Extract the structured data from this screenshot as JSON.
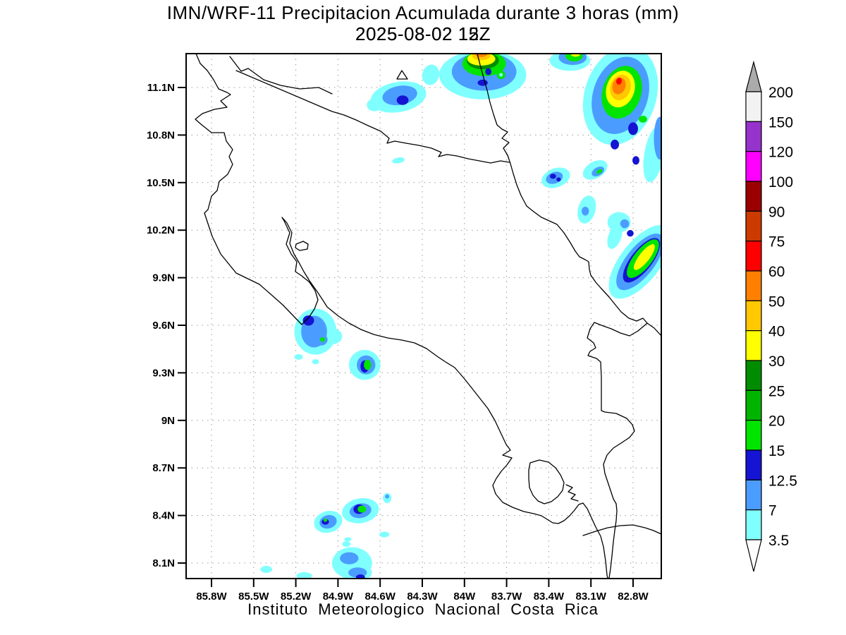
{
  "title": {
    "line1": "IMN/WRF-11 Precipitacion Acumulada durante 3 horas (mm)",
    "subtitle_overlap_a": "2025-08-02 15Z",
    "subtitle_overlap_b": "2025-08-02 12Z"
  },
  "footer": "Instituto Meteorologico Nacional Costa Rica",
  "chart_data": {
    "type": "heatmap",
    "subtype": "filled-contour-precipitation-map",
    "title": "IMN/WRF-11 Precipitacion Acumulada durante 3 horas (mm)",
    "valid_times_overlapped": [
      "2025-08-02 15Z",
      "2025-08-02 12Z"
    ],
    "units": "mm",
    "source": "Instituto Meteorologico Nacional Costa Rica",
    "region": "Costa Rica",
    "grid": {
      "visible": true,
      "style": "dotted",
      "color": "#999999"
    },
    "map_extent": {
      "lon_w_range": [
        85.98,
        82.6
      ],
      "lat_range": [
        8.0,
        11.31
      ]
    },
    "lat_ticks": {
      "values": [
        11.1,
        10.8,
        10.5,
        10.2,
        9.9,
        9.6,
        9.3,
        9.0,
        8.7,
        8.4,
        8.1
      ],
      "labels": [
        "11.1N",
        "10.8N",
        "10.5N",
        "10.2N",
        "9.9N",
        "9.6N",
        "9.3N",
        "9N",
        "8.7N",
        "8.4N",
        "8.1N"
      ]
    },
    "lon_ticks": {
      "values": [
        85.8,
        85.5,
        85.2,
        84.9,
        84.6,
        84.3,
        84.0,
        83.7,
        83.4,
        83.1,
        82.8
      ],
      "labels": [
        "85.8W",
        "85.5W",
        "85.2W",
        "84.9W",
        "84.6W",
        "84.3W",
        "84W",
        "83.7W",
        "83.4W",
        "83.1W",
        "82.8W"
      ]
    },
    "colorbar": {
      "position": "right",
      "levels_top_to_bottom": [
        "200",
        "150",
        "120",
        "100",
        "90",
        "75",
        "60",
        "50",
        "40",
        "30",
        "25",
        "20",
        "15",
        "12.5",
        "7",
        "3.5"
      ],
      "segment_colors_top_to_bottom": [
        "#f2f2f2",
        "#9633cc",
        "#ff00ff",
        "#9b0000",
        "#cc3a00",
        "#fe0000",
        "#ff8000",
        "#ffc800",
        "#ffff00",
        "#008c00",
        "#00b400",
        "#00e400",
        "#1414d2",
        "#4b9cff",
        "#80ffff"
      ],
      "over_arrow_color": "#ababab",
      "under_arrow_color": "#ffffff"
    },
    "level_colors": {
      "cyan": {
        "range_mm": "3.5-7",
        "hex": "#80ffff"
      },
      "blue": {
        "range_mm": "7-12.5",
        "hex": "#4b9cff"
      },
      "navy": {
        "range_mm": "12.5-15",
        "hex": "#1414d2"
      },
      "green": {
        "range_mm": "15-20",
        "hex": "#00e400"
      },
      "mgreen": {
        "range_mm": "20-25",
        "hex": "#00b400"
      },
      "dgreen": {
        "range_mm": "25-30",
        "hex": "#008c00"
      },
      "yellow": {
        "range_mm": "30-40",
        "hex": "#ffff00"
      },
      "gold": {
        "range_mm": "40-50",
        "hex": "#ffc800"
      },
      "orange": {
        "range_mm": "50-60",
        "hex": "#ff8000"
      },
      "red": {
        "range_mm": "60-75",
        "hex": "#fe0000"
      }
    },
    "precip_cells_note": "each shape: [level, lon_deg_west, lat_deg_north, rx_deg, ry_deg, rotation_deg]; painted in order",
    "precip_shapes": [
      [
        "cyan",
        84.47,
        11.04,
        0.2,
        0.095,
        -10
      ],
      [
        "cyan",
        84.64,
        10.99,
        0.055,
        0.04,
        0
      ],
      [
        "cyan",
        84.24,
        11.18,
        0.06,
        0.065,
        15
      ],
      [
        "blue",
        84.46,
        11.05,
        0.125,
        0.06,
        -10
      ],
      [
        "navy",
        84.44,
        11.02,
        0.042,
        0.03,
        0
      ],
      [
        "cyan",
        84.47,
        10.64,
        0.045,
        0.018,
        -10
      ],
      [
        "cyan",
        83.87,
        11.18,
        0.31,
        0.155,
        0
      ],
      [
        "blue",
        83.86,
        11.2,
        0.23,
        0.12,
        0
      ],
      [
        "green",
        83.86,
        11.25,
        0.155,
        0.078,
        0
      ],
      [
        "dgreen",
        83.87,
        11.27,
        0.115,
        0.055,
        0
      ],
      [
        "yellow",
        83.88,
        11.28,
        0.1,
        0.042,
        0
      ],
      [
        "gold",
        83.88,
        11.3,
        0.065,
        0.028,
        0
      ],
      [
        "orange",
        83.88,
        11.31,
        0.042,
        0.018,
        0
      ],
      [
        "red",
        83.88,
        11.32,
        0.024,
        0.01,
        0
      ],
      [
        "navy",
        83.87,
        11.13,
        0.036,
        0.02,
        0
      ],
      [
        "navy",
        83.83,
        11.2,
        0.022,
        0.022,
        0
      ],
      [
        "green",
        83.74,
        11.18,
        0.03,
        0.027,
        0
      ],
      [
        "cyan",
        83.74,
        11.18,
        0.013,
        0.012,
        0
      ],
      [
        "cyan",
        82.89,
        11.05,
        0.255,
        0.32,
        18
      ],
      [
        "cyan",
        82.65,
        10.68,
        0.07,
        0.18,
        10
      ],
      [
        "blue",
        82.89,
        11.05,
        0.195,
        0.25,
        18
      ],
      [
        "blue",
        82.61,
        10.78,
        0.042,
        0.135,
        0
      ],
      [
        "green",
        82.88,
        11.07,
        0.138,
        0.17,
        18
      ],
      [
        "yellow",
        82.89,
        11.09,
        0.1,
        0.118,
        18
      ],
      [
        "gold",
        82.89,
        11.1,
        0.072,
        0.082,
        18
      ],
      [
        "orange",
        82.9,
        11.11,
        0.046,
        0.054,
        18
      ],
      [
        "red",
        82.9,
        11.14,
        0.02,
        0.022,
        10
      ],
      [
        "green",
        82.73,
        10.9,
        0.03,
        0.022,
        0
      ],
      [
        "navy",
        82.8,
        10.84,
        0.035,
        0.04,
        0
      ],
      [
        "navy",
        82.93,
        10.74,
        0.03,
        0.031,
        0
      ],
      [
        "navy",
        82.78,
        10.64,
        0.025,
        0.027,
        0
      ],
      [
        "cyan",
        83.25,
        11.27,
        0.145,
        0.065,
        0
      ],
      [
        "blue",
        83.23,
        11.29,
        0.1,
        0.048,
        0
      ],
      [
        "green",
        83.22,
        11.3,
        0.062,
        0.036,
        0
      ],
      [
        "yellow",
        83.21,
        11.31,
        0.032,
        0.016,
        0
      ],
      [
        "cyan",
        83.07,
        10.58,
        0.095,
        0.052,
        -30
      ],
      [
        "blue",
        83.05,
        10.57,
        0.048,
        0.026,
        -30
      ],
      [
        "green",
        83.04,
        10.57,
        0.022,
        0.012,
        -30
      ],
      [
        "cyan",
        83.35,
        10.53,
        0.105,
        0.06,
        -20
      ],
      [
        "blue",
        83.36,
        10.53,
        0.062,
        0.036,
        -20
      ],
      [
        "navy",
        83.37,
        10.54,
        0.022,
        0.016,
        0
      ],
      [
        "navy",
        83.33,
        10.52,
        0.016,
        0.013,
        0
      ],
      [
        "cyan",
        83.13,
        10.33,
        0.062,
        0.09,
        15
      ],
      [
        "blue",
        83.14,
        10.32,
        0.026,
        0.028,
        0
      ],
      [
        "cyan",
        82.9,
        10.25,
        0.082,
        0.064,
        0
      ],
      [
        "blue",
        82.86,
        10.24,
        0.032,
        0.028,
        0
      ],
      [
        "cyan",
        82.93,
        10.16,
        0.046,
        0.082,
        20
      ],
      [
        "navy",
        82.82,
        10.18,
        0.024,
        0.021,
        0
      ],
      [
        "cyan",
        82.75,
        10.0,
        0.142,
        0.278,
        38
      ],
      [
        "blue",
        82.75,
        10.0,
        0.102,
        0.215,
        38
      ],
      [
        "navy",
        82.74,
        10.01,
        0.075,
        0.17,
        38
      ],
      [
        "green",
        82.73,
        10.02,
        0.065,
        0.148,
        38
      ],
      [
        "yellow",
        82.72,
        10.03,
        0.036,
        0.1,
        38
      ],
      [
        "cyan",
        85.06,
        9.56,
        0.15,
        0.145,
        0
      ],
      [
        "cyan",
        84.94,
        9.53,
        0.07,
        0.05,
        0
      ],
      [
        "blue",
        85.07,
        9.56,
        0.092,
        0.1,
        0
      ],
      [
        "navy",
        85.11,
        9.63,
        0.04,
        0.032,
        0
      ],
      [
        "blue",
        85.02,
        9.51,
        0.046,
        0.038,
        0
      ],
      [
        "green",
        85.01,
        9.51,
        0.018,
        0.014,
        0
      ],
      [
        "cyan",
        85.18,
        9.4,
        0.03,
        0.018,
        0
      ],
      [
        "cyan",
        85.06,
        9.37,
        0.025,
        0.016,
        0
      ],
      [
        "cyan",
        84.71,
        9.35,
        0.112,
        0.095,
        0
      ],
      [
        "blue",
        84.7,
        9.35,
        0.066,
        0.06,
        0
      ],
      [
        "navy",
        84.71,
        9.34,
        0.03,
        0.038,
        0
      ],
      [
        "green",
        84.69,
        9.35,
        0.026,
        0.032,
        0
      ],
      [
        "cyan",
        84.55,
        8.51,
        0.03,
        0.032,
        0
      ],
      [
        "blue",
        84.55,
        8.52,
        0.014,
        0.013,
        0
      ],
      [
        "cyan",
        84.74,
        8.43,
        0.132,
        0.078,
        -10
      ],
      [
        "blue",
        84.74,
        8.43,
        0.078,
        0.046,
        -10
      ],
      [
        "navy",
        84.75,
        8.44,
        0.04,
        0.03,
        -10
      ],
      [
        "green",
        84.73,
        8.44,
        0.03,
        0.022,
        0
      ],
      [
        "cyan",
        84.97,
        8.36,
        0.102,
        0.068,
        -15
      ],
      [
        "blue",
        84.97,
        8.36,
        0.062,
        0.042,
        -15
      ],
      [
        "navy",
        84.99,
        8.36,
        0.026,
        0.018,
        0
      ],
      [
        "green",
        84.99,
        8.37,
        0.013,
        0.01,
        0
      ],
      [
        "cyan",
        84.57,
        8.28,
        0.036,
        0.018,
        0
      ],
      [
        "cyan",
        84.83,
        8.25,
        0.026,
        0.013,
        0
      ],
      [
        "cyan",
        84.8,
        8.1,
        0.142,
        0.1,
        0
      ],
      [
        "cyan",
        84.77,
        8.04,
        0.112,
        0.055,
        0
      ],
      [
        "cyan",
        84.84,
        8.22,
        0.03,
        0.018,
        0
      ],
      [
        "blue",
        84.82,
        8.13,
        0.066,
        0.038,
        0
      ],
      [
        "blue",
        84.76,
        8.04,
        0.066,
        0.032,
        0
      ],
      [
        "navy",
        84.74,
        8.01,
        0.032,
        0.018,
        0
      ],
      [
        "cyan",
        85.41,
        8.06,
        0.042,
        0.022,
        0
      ],
      [
        "cyan",
        85.14,
        8.02,
        0.056,
        0.022,
        0
      ]
    ]
  }
}
